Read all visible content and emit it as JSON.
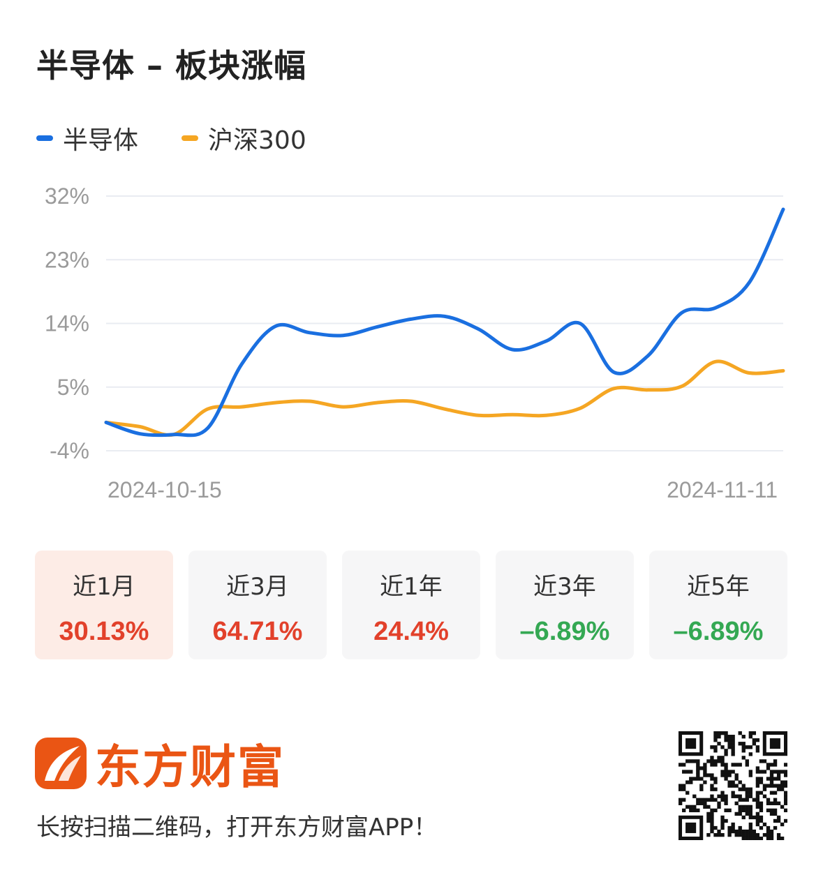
{
  "header": {
    "title": "半导体 – 板块涨幅"
  },
  "legend": [
    {
      "label": "半导体",
      "color": "#1a6fe0"
    },
    {
      "label": "沪深300",
      "color": "#f5a623"
    }
  ],
  "chart_data": {
    "type": "line",
    "x_tick_labels": [
      "2024-10-15",
      "2024-11-11"
    ],
    "y_tick_labels": [
      "32%",
      "23%",
      "14%",
      "5%",
      "-4%"
    ],
    "ylim": [
      -4,
      32
    ],
    "grid": true,
    "legend_position": "top-left",
    "series": [
      {
        "name": "半导体",
        "color": "#1a6fe0",
        "values": [
          0,
          -1.6,
          -1.7,
          -0.8,
          8.2,
          13.6,
          12.7,
          12.3,
          13.5,
          14.6,
          15.0,
          13.2,
          10.3,
          11.5,
          14.0,
          7.1,
          9.4,
          15.5,
          16.2,
          19.8,
          30.13
        ]
      },
      {
        "name": "沪深300",
        "color": "#f5a623",
        "values": [
          0,
          -0.6,
          -1.7,
          1.9,
          2.2,
          2.8,
          3.0,
          2.2,
          2.8,
          3.0,
          1.9,
          1.0,
          1.1,
          1.0,
          2.0,
          4.8,
          4.6,
          5.1,
          8.6,
          7.0,
          7.3
        ]
      }
    ]
  },
  "periods": [
    {
      "label": "近1月",
      "value": "30.13%",
      "value_color": "#e2412b",
      "active": true
    },
    {
      "label": "近3月",
      "value": "64.71%",
      "value_color": "#e2412b",
      "active": false
    },
    {
      "label": "近1年",
      "value": "24.4%",
      "value_color": "#e2412b",
      "active": false
    },
    {
      "label": "近3年",
      "value": "–6.89%",
      "value_color": "#34a853",
      "active": false
    },
    {
      "label": "近5年",
      "value": "–6.89%",
      "value_color": "#34a853",
      "active": false
    }
  ],
  "footer": {
    "brand": "东方财富",
    "brand_color": "#ea5514",
    "cta": "长按扫描二维码，打开东方财富APP！"
  }
}
